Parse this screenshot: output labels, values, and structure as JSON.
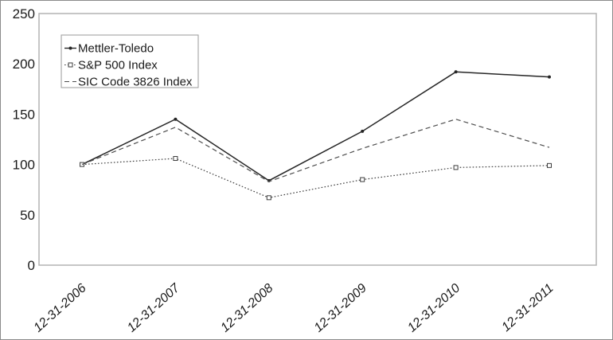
{
  "chart_data": {
    "type": "line",
    "title": "",
    "xlabel": "",
    "ylabel": "",
    "categories": [
      "12-31-2006",
      "12-31-2007",
      "12-31-2008",
      "12-31-2009",
      "12-31-2010",
      "12-31-2011"
    ],
    "y_ticks": [
      0,
      50,
      100,
      150,
      200,
      250
    ],
    "ylim": [
      0,
      250
    ],
    "grid": false,
    "legend_position": "top-left",
    "colors": {
      "plot_border": "#b3b3b3",
      "legend_border": "#9a9a9a",
      "solid_line": "#262626",
      "dotted_line": "#3d3d3d",
      "dashed_line": "#4d4d4d",
      "background": "#ffffff"
    },
    "series": [
      {
        "name": "Mettler-Toledo",
        "style": "solid",
        "marker": "dot",
        "color": "#262626",
        "values": [
          100,
          145,
          84,
          133,
          192,
          187
        ]
      },
      {
        "name": "S&P 500 Index",
        "style": "dotted",
        "marker": "open-square",
        "color": "#3d3d3d",
        "values": [
          100,
          106,
          67,
          85,
          97,
          99
        ]
      },
      {
        "name": "SIC Code 3826 Index",
        "style": "dashed",
        "marker": "none",
        "color": "#4d4d4d",
        "values": [
          100,
          137,
          83,
          116,
          145,
          117
        ]
      }
    ]
  }
}
